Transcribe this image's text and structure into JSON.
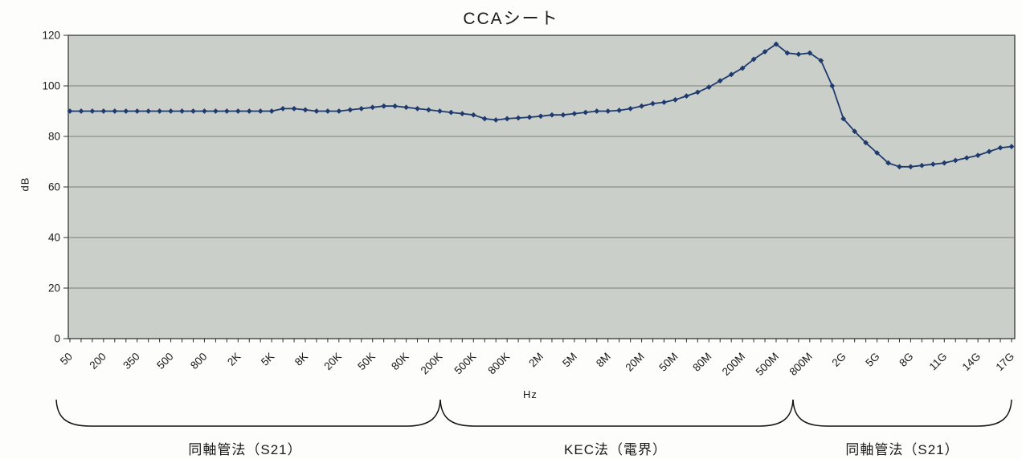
{
  "chart_data": {
    "type": "line",
    "title": "CCAシート",
    "xlabel": "Hz",
    "ylabel": "dB",
    "ylim": [
      0,
      120
    ],
    "yticks": [
      0,
      20,
      40,
      60,
      80,
      100,
      120
    ],
    "grid": "horizontal-only",
    "legend": "none",
    "line_color": "#1e3a6e",
    "marker": "diamond",
    "plot_bg": "#cbcfca",
    "grid_color": "#5f6560",
    "axis_color": "#2a2a2a",
    "x_tick_labels": [
      "50",
      "200",
      "350",
      "500",
      "800",
      "2K",
      "5K",
      "8K",
      "20K",
      "50K",
      "80K",
      "200K",
      "500K",
      "800K",
      "2M",
      "5M",
      "8M",
      "20M",
      "50M",
      "80M",
      "200M",
      "500M",
      "800M",
      "2G",
      "5G",
      "8G",
      "11G",
      "14G",
      "17G"
    ],
    "points_per_labeled_tick": 3,
    "series": [
      {
        "name": "CCAシート",
        "values": [
          90,
          90,
          90,
          90,
          90,
          90,
          90,
          90,
          90,
          90,
          90,
          90,
          90,
          90,
          90,
          90,
          90,
          90,
          90,
          91,
          91,
          90.5,
          90,
          90,
          90,
          90.5,
          91,
          91.5,
          92,
          92,
          91.5,
          91,
          90.5,
          90,
          89.5,
          89,
          88.5,
          87,
          86.5,
          87,
          87.3,
          87.6,
          88,
          88.5,
          88.5,
          89,
          89.5,
          90,
          90,
          90.3,
          91,
          92,
          93,
          93.5,
          94.5,
          96,
          97.5,
          99.5,
          102,
          104.5,
          107,
          110.5,
          113.5,
          116.5,
          113,
          112.5,
          113,
          110,
          100,
          87,
          82,
          77.5,
          73.5,
          69.5,
          68,
          68,
          68.5,
          69,
          69.5,
          70.5,
          71.5,
          72.5,
          74,
          75.5,
          76
        ]
      }
    ]
  },
  "annotations": {
    "braces": [
      {
        "label": "同軸管法（S21）"
      },
      {
        "label": "KEC法（電界）"
      },
      {
        "label": "同軸管法（S21）"
      }
    ]
  }
}
